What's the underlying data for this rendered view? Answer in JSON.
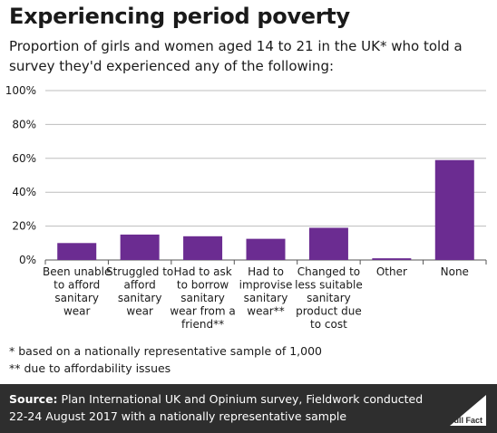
{
  "title": "Experiencing period poverty",
  "subtitle": "Proportion of girls and women aged 14 to 21 in the UK* who told a survey they'd experienced any of the following:",
  "notes": [
    "* based on a nationally representative sample of 1,000",
    "** due to affordability issues"
  ],
  "footer": {
    "source_label": "Source:",
    "source_text": "Plan International UK and Opinium survey, Fieldwork conducted 22-24 August 2017 with a nationally representative sample",
    "logo_text": "Full Fact"
  },
  "colors": {
    "bar": "#6b2c91",
    "grid": "#bdbdbd",
    "footer_bg": "#2e2e2e"
  },
  "chart_data": {
    "type": "bar",
    "categories": [
      "Been unable to afford sanitary wear",
      "Struggled to afford sanitary wear",
      "Had to ask to borrow sanitary wear from a friend**",
      "Had to improvise sanitary wear**",
      "Changed to less suitable sanitary product due to cost",
      "Other",
      "None"
    ],
    "category_label_lines": [
      [
        "Been unable",
        "to afford",
        "sanitary",
        "wear"
      ],
      [
        "Struggled to",
        "afford",
        "sanitary",
        "wear"
      ],
      [
        "Had to ask",
        "to  borrow",
        "sanitary",
        "wear from a",
        "friend**"
      ],
      [
        "Had to",
        "improvise",
        "sanitary",
        "wear**"
      ],
      [
        "Changed to",
        "less suitable",
        "sanitary",
        "product due",
        "to cost"
      ],
      [
        "Other"
      ],
      [
        "None"
      ]
    ],
    "values": [
      10,
      15,
      14,
      12.5,
      19,
      1,
      59
    ],
    "ylim": [
      0,
      100
    ],
    "yticks": [
      0,
      20,
      40,
      60,
      80,
      100
    ],
    "ytick_labels": [
      "0%",
      "20%",
      "40%",
      "60%",
      "80%",
      "100%"
    ],
    "xlabel": "",
    "ylabel": "",
    "grid": true
  }
}
